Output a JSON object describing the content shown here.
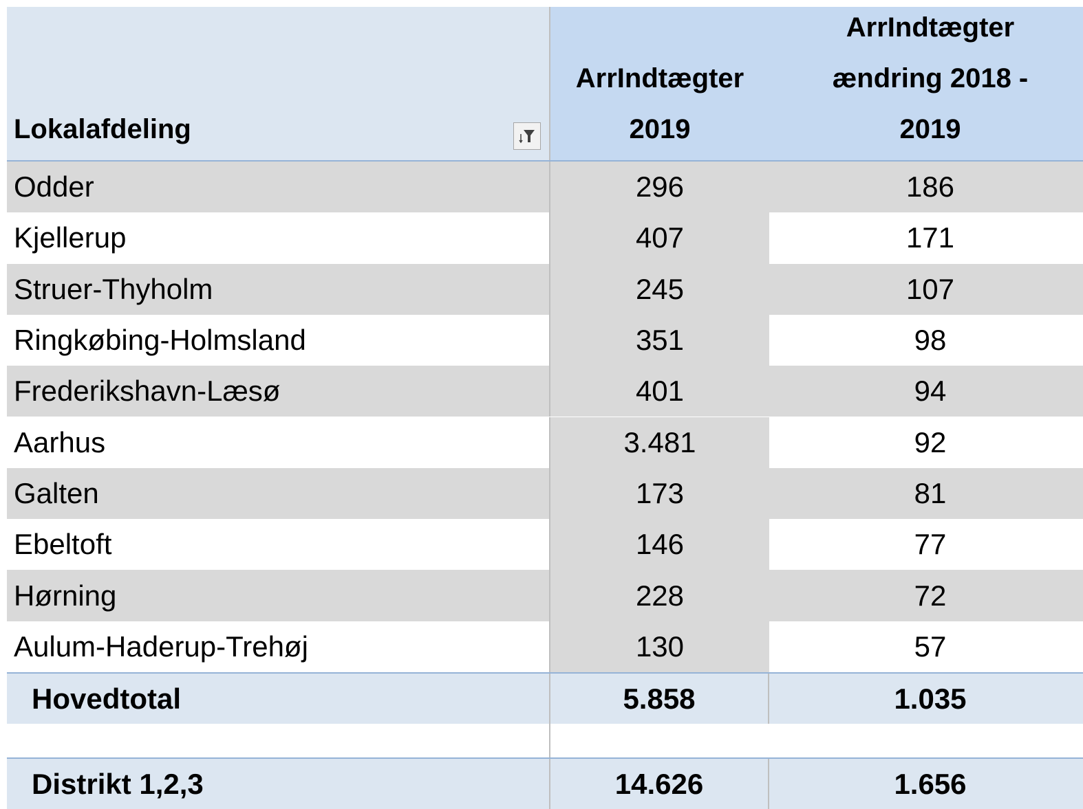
{
  "table": {
    "header": [
      "Lokalafdeling",
      "ArrIndtægter\n2019",
      "ArrIndtægter\nændring 2018 -\n2019"
    ],
    "rows": [
      [
        "Odder",
        "296",
        "186"
      ],
      [
        "Kjellerup",
        "407",
        "171"
      ],
      [
        "Struer-Thyholm",
        "245",
        "107"
      ],
      [
        "Ringkøbing-Holmsland",
        "351",
        "98"
      ],
      [
        "Frederikshavn-Læsø",
        "401",
        "94"
      ],
      [
        "Aarhus",
        "3.481",
        "92"
      ],
      [
        "Galten",
        "173",
        "81"
      ],
      [
        "Ebeltoft",
        "146",
        "77"
      ],
      [
        "Hørning",
        "228",
        "72"
      ],
      [
        "Aulum-Haderup-Trehøj",
        "130",
        "57"
      ]
    ],
    "total": [
      "Hovedtotal",
      "5.858",
      "1.035"
    ],
    "district": [
      "Distrikt 1,2,3",
      "14.626",
      "1.656"
    ]
  }
}
